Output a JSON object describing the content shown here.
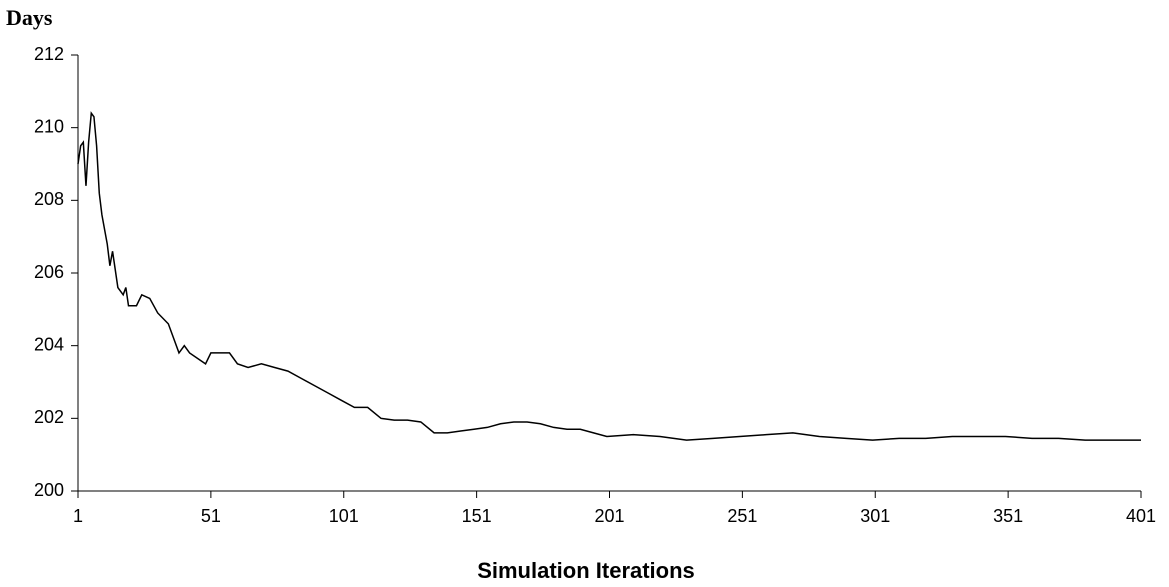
{
  "chart_data": {
    "type": "line",
    "y_label": "Days",
    "x_label": "Simulation Iterations",
    "xlim": [
      1,
      401
    ],
    "xticks": [
      1,
      51,
      101,
      151,
      201,
      251,
      301,
      351,
      401
    ],
    "ylim": [
      200,
      212
    ],
    "yticks": [
      200,
      202,
      204,
      206,
      208,
      210,
      212
    ],
    "grid": false,
    "series": [
      {
        "color": "#000000",
        "x": [
          1,
          2,
          3,
          4,
          5,
          6,
          7,
          8,
          9,
          10,
          12,
          13,
          14,
          16,
          18,
          19,
          20,
          23,
          25,
          28,
          31,
          35,
          37,
          39,
          41,
          43,
          47,
          49,
          51,
          55,
          58,
          61,
          65,
          70,
          75,
          80,
          85,
          90,
          95,
          100,
          105,
          110,
          115,
          120,
          125,
          130,
          135,
          140,
          145,
          150,
          155,
          160,
          165,
          170,
          175,
          180,
          185,
          190,
          195,
          200,
          210,
          220,
          230,
          240,
          250,
          260,
          270,
          280,
          290,
          300,
          310,
          320,
          330,
          340,
          350,
          360,
          370,
          380,
          390,
          401
        ],
        "values": [
          209.0,
          209.5,
          209.6,
          208.4,
          209.6,
          210.4,
          210.3,
          209.5,
          208.2,
          207.6,
          206.8,
          206.2,
          206.6,
          205.6,
          205.4,
          205.6,
          205.1,
          205.1,
          205.4,
          205.3,
          204.9,
          204.6,
          204.2,
          203.8,
          204.0,
          203.8,
          203.6,
          203.5,
          203.8,
          203.8,
          203.8,
          203.5,
          203.4,
          203.5,
          203.4,
          203.3,
          203.1,
          202.9,
          202.7,
          202.5,
          202.3,
          202.3,
          202.0,
          201.95,
          201.95,
          201.9,
          201.6,
          201.6,
          201.65,
          201.7,
          201.75,
          201.85,
          201.9,
          201.9,
          201.85,
          201.75,
          201.7,
          201.7,
          201.6,
          201.5,
          201.55,
          201.5,
          201.4,
          201.45,
          201.5,
          201.55,
          201.6,
          201.5,
          201.45,
          201.4,
          201.45,
          201.45,
          201.5,
          201.5,
          201.5,
          201.45,
          201.45,
          201.4,
          201.4,
          201.4
        ]
      }
    ]
  }
}
